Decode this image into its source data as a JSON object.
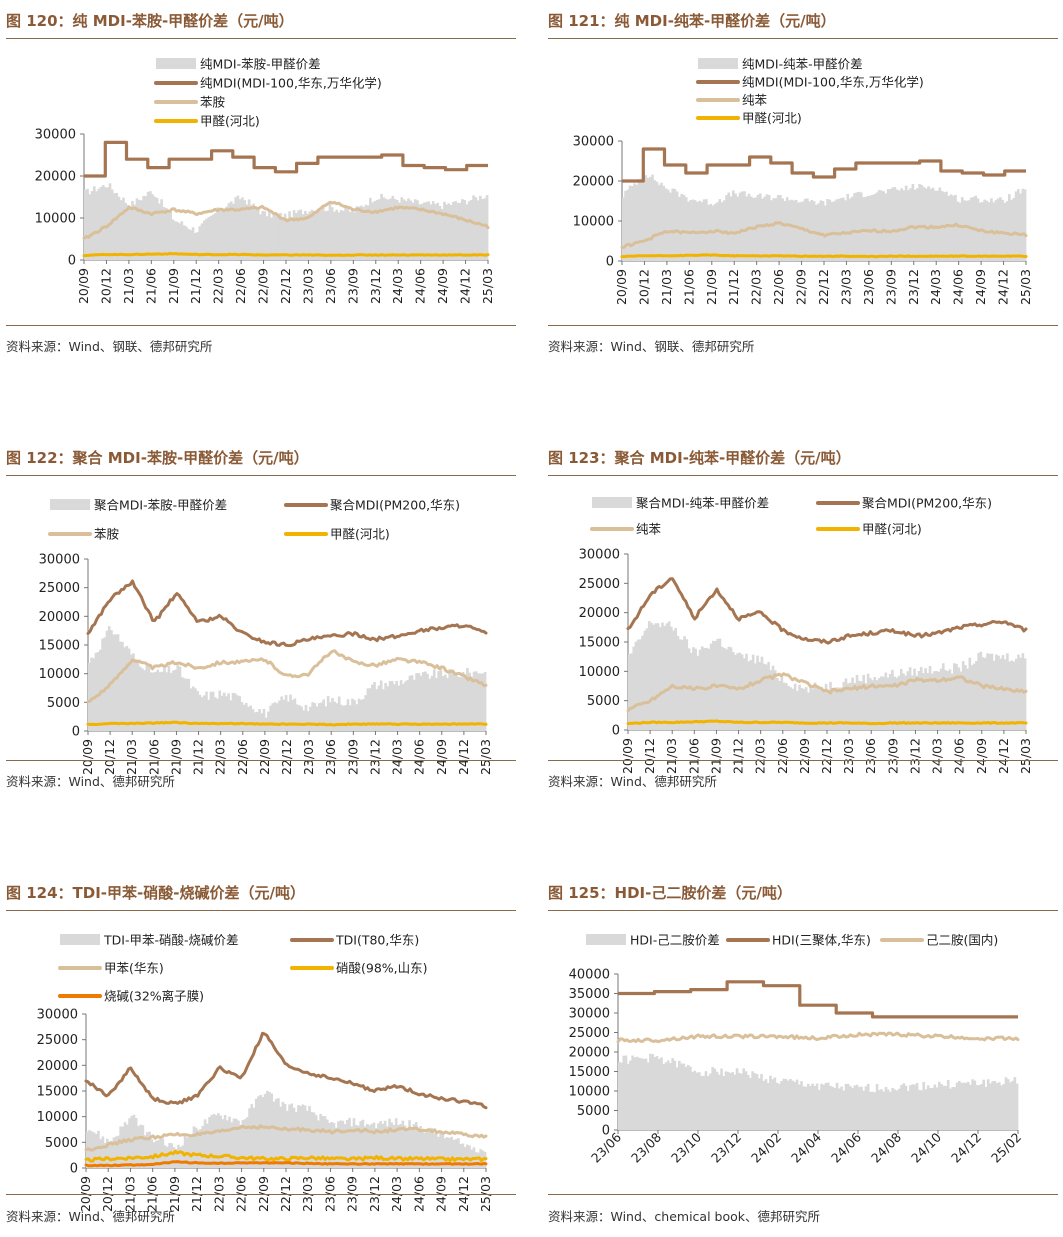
{
  "colors": {
    "title": "#8a5a36",
    "rule": "#8a6a4c",
    "spread": "#d9d9d9",
    "product": "#a47550",
    "raw1": "#d9c09a",
    "raw2": "#f2b200",
    "raw3": "#ee7a00"
  },
  "panels": [
    {
      "title": "图 120：纯 MDI-苯胺-甲醛价差（元/吨）",
      "source": "资料来源：Wind、钢联、德邦研究所",
      "chart_data": {
        "type": "line",
        "x_ticks": [
          "20/09",
          "20/12",
          "21/03",
          "21/06",
          "21/09",
          "21/12",
          "22/03",
          "22/06",
          "22/09",
          "22/12",
          "23/03",
          "23/06",
          "23/09",
          "23/12",
          "24/03",
          "24/06",
          "24/09",
          "24/12",
          "25/03"
        ],
        "ylim": [
          0,
          30000
        ],
        "y_ticks": [
          0,
          10000,
          20000,
          30000
        ],
        "series": [
          {
            "name": "纯MDI-苯胺-甲醛价差",
            "kind": "area",
            "values": [
              16000,
              18000,
              13000,
              16500,
              9500,
              7000,
              12000,
              15000,
              11000,
              10500,
              12000,
              12500,
              11500,
              15000,
              14500,
              13500,
              13000,
              14000,
              15500
            ]
          },
          {
            "name": "纯MDI(MDI-100,华东,万华化学)",
            "kind": "step",
            "values": [
              20000,
              28000,
              24000,
              22000,
              24000,
              24000,
              26000,
              24500,
              22000,
              21000,
              23000,
              24500,
              24500,
              24500,
              25000,
              22500,
              22000,
              21500,
              22500
            ]
          },
          {
            "name": "苯胺",
            "kind": "line",
            "values": [
              5000,
              8000,
              12500,
              11000,
              12000,
              11000,
              12000,
              12000,
              12500,
              9500,
              10000,
              14000,
              12000,
              11500,
              12500,
              12000,
              11000,
              9500,
              8000
            ]
          },
          {
            "name": "甲醛(河北)",
            "kind": "line",
            "values": [
              1100,
              1300,
              1300,
              1400,
              1500,
              1300,
              1300,
              1300,
              1200,
              1200,
              1200,
              1100,
              1200,
              1200,
              1200,
              1200,
              1200,
              1200,
              1200
            ]
          }
        ]
      }
    },
    {
      "title": "图 121：纯 MDI-纯苯-甲醛价差（元/吨）",
      "source": "资料来源：Wind、钢联、德邦研究所",
      "chart_data": {
        "type": "line",
        "x_ticks": [
          "20/09",
          "20/12",
          "21/03",
          "21/06",
          "21/09",
          "21/12",
          "22/03",
          "22/06",
          "22/09",
          "22/12",
          "23/03",
          "23/06",
          "23/09",
          "23/12",
          "24/03",
          "24/06",
          "24/09",
          "24/12",
          "25/03"
        ],
        "ylim": [
          0,
          30000
        ],
        "y_ticks": [
          0,
          10000,
          20000,
          30000
        ],
        "series": [
          {
            "name": "纯MDI-纯苯-甲醛价差",
            "kind": "area",
            "values": [
              16500,
              22000,
              18000,
              15500,
              14500,
              17000,
              16000,
              16000,
              15000,
              14500,
              16000,
              17000,
              17500,
              18500,
              18500,
              15500,
              15500,
              15000,
              18000
            ]
          },
          {
            "name": "纯MDI(MDI-100,华东,万华化学)",
            "kind": "step",
            "values": [
              20000,
              28000,
              24000,
              22000,
              24000,
              24000,
              26000,
              24500,
              22000,
              21000,
              23000,
              24500,
              24500,
              24500,
              25000,
              22500,
              22000,
              21500,
              22500
            ]
          },
          {
            "name": "纯苯",
            "kind": "line",
            "values": [
              3500,
              5000,
              7500,
              7000,
              7500,
              7000,
              8500,
              9500,
              8000,
              6500,
              7000,
              7500,
              7500,
              8500,
              8500,
              9000,
              7500,
              7000,
              6500
            ]
          },
          {
            "name": "甲醛(河北)",
            "kind": "line",
            "values": [
              1100,
              1300,
              1300,
              1400,
              1500,
              1300,
              1300,
              1300,
              1200,
              1200,
              1200,
              1100,
              1200,
              1200,
              1200,
              1200,
              1200,
              1200,
              1200
            ]
          }
        ]
      }
    },
    {
      "title": "图 122：聚合 MDI-苯胺-甲醛价差（元/吨）",
      "source": "资料来源：Wind、德邦研究所",
      "chart_data": {
        "type": "line",
        "x_ticks": [
          "20/09",
          "20/12",
          "21/03",
          "21/06",
          "21/09",
          "21/12",
          "22/03",
          "22/06",
          "22/09",
          "22/12",
          "23/03",
          "23/06",
          "23/09",
          "23/12",
          "24/03",
          "24/06",
          "24/09",
          "24/12",
          "25/03"
        ],
        "ylim": [
          0,
          30000
        ],
        "y_ticks": [
          0,
          5000,
          10000,
          15000,
          20000,
          25000,
          30000
        ],
        "series": [
          {
            "name": "聚合MDI-苯胺-甲醛价差",
            "kind": "area",
            "values": [
              12000,
              18000,
              13000,
              10000,
              11000,
              6000,
              6500,
              5500,
              3000,
              6000,
              4000,
              5500,
              5000,
              8000,
              8500,
              9500,
              10000,
              10000,
              10500
            ]
          },
          {
            "name": "聚合MDI(PM200,华东)",
            "kind": "line",
            "values": [
              17000,
              23000,
              26000,
              19000,
              24000,
              19000,
              20000,
              17000,
              15500,
              15000,
              16000,
              16500,
              17000,
              16000,
              16500,
              17500,
              18000,
              18500,
              17000
            ]
          },
          {
            "name": "苯胺",
            "kind": "line",
            "values": [
              5000,
              8000,
              12500,
              11000,
              12000,
              11000,
              12000,
              12000,
              12500,
              9500,
              10000,
              14000,
              12000,
              11500,
              12500,
              12000,
              11000,
              9500,
              8000
            ]
          },
          {
            "name": "甲醛(河北)",
            "kind": "line",
            "values": [
              1100,
              1300,
              1300,
              1400,
              1500,
              1300,
              1300,
              1300,
              1200,
              1200,
              1200,
              1100,
              1200,
              1200,
              1200,
              1200,
              1200,
              1200,
              1200
            ]
          }
        ]
      }
    },
    {
      "title": "图 123：聚合 MDI-纯苯-甲醛价差（元/吨）",
      "source": "资料来源：Wind、德邦研究所",
      "chart_data": {
        "type": "line",
        "x_ticks": [
          "20/09",
          "20/12",
          "21/03",
          "21/06",
          "21/09",
          "21/12",
          "22/03",
          "22/06",
          "22/09",
          "22/12",
          "23/03",
          "23/06",
          "23/09",
          "23/12",
          "24/03",
          "24/06",
          "24/09",
          "24/12",
          "25/03"
        ],
        "ylim": [
          0,
          30000
        ],
        "y_ticks": [
          0,
          5000,
          10000,
          15000,
          20000,
          25000,
          30000
        ],
        "series": [
          {
            "name": "聚合MDI-纯苯-甲醛价差",
            "kind": "area",
            "values": [
              12500,
              18500,
              17500,
              13000,
              15500,
              12500,
              12000,
              8500,
              7000,
              7500,
              8500,
              9000,
              9500,
              10000,
              10500,
              10500,
              12500,
              12500,
              12500
            ]
          },
          {
            "name": "聚合MDI(PM200,华东)",
            "kind": "line",
            "values": [
              17000,
              23000,
              26000,
              19000,
              24000,
              19000,
              20000,
              17000,
              15500,
              15000,
              16000,
              16500,
              17000,
              16000,
              16500,
              17500,
              18000,
              18500,
              17000
            ]
          },
          {
            "name": "纯苯",
            "kind": "line",
            "values": [
              3500,
              5000,
              7500,
              7000,
              7500,
              7000,
              8500,
              9500,
              8000,
              6500,
              7000,
              7500,
              7500,
              8500,
              8500,
              9000,
              7500,
              7000,
              6500
            ]
          },
          {
            "name": "甲醛(河北)",
            "kind": "line",
            "values": [
              1100,
              1300,
              1300,
              1400,
              1500,
              1300,
              1300,
              1300,
              1200,
              1200,
              1200,
              1100,
              1200,
              1200,
              1200,
              1200,
              1200,
              1200,
              1200
            ]
          }
        ]
      }
    },
    {
      "title": "图 124：TDI-甲苯-硝酸-烧碱价差（元/吨）",
      "source": "资料来源：Wind、德邦研究所",
      "chart_data": {
        "type": "line",
        "x_ticks": [
          "20/09",
          "20/12",
          "21/03",
          "21/06",
          "21/09",
          "21/12",
          "22/03",
          "22/06",
          "22/09",
          "22/12",
          "23/03",
          "23/06",
          "23/09",
          "23/12",
          "24/03",
          "24/06",
          "24/09",
          "24/12",
          "25/03"
        ],
        "ylim": [
          0,
          30000
        ],
        "y_ticks": [
          0,
          5000,
          10000,
          15000,
          20000,
          25000,
          30000
        ],
        "series": [
          {
            "name": "TDI-甲苯-硝酸-烧碱价差",
            "kind": "area",
            "values": [
              8000,
              5000,
              10000,
              5500,
              4000,
              8000,
              10500,
              9000,
              15000,
              12000,
              11500,
              8500,
              9000,
              8500,
              9000,
              8000,
              6500,
              4500,
              3500
            ]
          },
          {
            "name": "TDI(T80,华东)",
            "kind": "line",
            "values": [
              17000,
              14000,
              19500,
              13500,
              12500,
              14000,
              19500,
              17500,
              26500,
              20000,
              18500,
              17500,
              16500,
              15000,
              16000,
              14500,
              13500,
              13000,
              12000
            ]
          },
          {
            "name": "甲苯(华东)",
            "kind": "line",
            "values": [
              3500,
              4500,
              5500,
              6000,
              6500,
              6500,
              7000,
              8000,
              8000,
              7500,
              7500,
              7000,
              7500,
              7000,
              7500,
              7500,
              7000,
              6500,
              6000
            ]
          },
          {
            "name": "硝酸(98%,山东)",
            "kind": "line",
            "values": [
              1500,
              1800,
              2000,
              2200,
              3000,
              2500,
              2300,
              2000,
              1800,
              1800,
              2000,
              1800,
              1700,
              2000,
              1800,
              1800,
              1700,
              1700,
              1700
            ]
          },
          {
            "name": "烧碱(32%离子膜)",
            "kind": "line",
            "values": [
              500,
              500,
              600,
              700,
              1200,
              1000,
              900,
              1000,
              1000,
              1000,
              900,
              800,
              800,
              800,
              800,
              800,
              800,
              800,
              800
            ]
          }
        ]
      }
    },
    {
      "title": "图 125：HDI-己二胺价差（元/吨）",
      "source": "资料来源：Wind、chemical book、德邦研究所",
      "chart_data": {
        "type": "line",
        "x_ticks": [
          "23/06",
          "23/08",
          "23/10",
          "23/12",
          "24/02",
          "24/04",
          "24/06",
          "24/08",
          "24/10",
          "24/12",
          "25/02"
        ],
        "ylim": [
          0,
          40000
        ],
        "y_ticks": [
          0,
          5000,
          10000,
          15000,
          20000,
          25000,
          30000,
          35000,
          40000
        ],
        "series": [
          {
            "name": "HDI-己二胺价差",
            "kind": "area",
            "values": [
              18000,
              18500,
              15000,
              15000,
              12500,
              11500,
              10500,
              11000,
              11500,
              12000,
              12500
            ]
          },
          {
            "name": "HDI(三聚体,华东)",
            "kind": "step",
            "values": [
              35000,
              35500,
              36000,
              38000,
              37000,
              32000,
              30000,
              29000,
              29000,
              29000,
              29000
            ]
          },
          {
            "name": "己二胺(国内)",
            "kind": "line",
            "values": [
              23000,
              23000,
              24000,
              24000,
              24000,
              23500,
              24500,
              24500,
              24000,
              23500,
              23500
            ]
          }
        ]
      }
    }
  ]
}
